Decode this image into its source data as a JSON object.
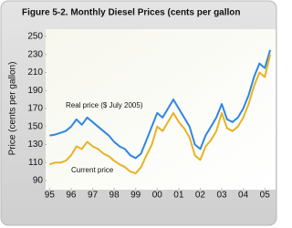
{
  "chart_data": {
    "type": "line",
    "title": "Figure 5-2.  Monthly Diesel Prices (cents per gallon",
    "y_label": "Price (cents per gallon)",
    "annotations": [
      "Real price ($ July 2005)",
      "Current price"
    ],
    "x": [
      1995,
      1995.25,
      1995.5,
      1995.75,
      1996,
      1996.25,
      1996.5,
      1996.75,
      1997,
      1997.25,
      1997.5,
      1997.75,
      1998,
      1998.25,
      1998.5,
      1998.75,
      1999,
      1999.25,
      1999.5,
      1999.75,
      2000,
      2000.25,
      2000.5,
      2000.75,
      2001,
      2001.25,
      2001.5,
      2001.75,
      2002,
      2002.25,
      2002.5,
      2002.75,
      2003,
      2003.25,
      2003.5,
      2003.75,
      2004,
      2004.25,
      2004.5,
      2004.75,
      2005,
      2005.25
    ],
    "series": [
      {
        "name": "Real price",
        "color": "#2f86e0",
        "values": [
          140,
          141,
          143,
          145,
          150,
          158,
          152,
          160,
          155,
          150,
          145,
          140,
          133,
          128,
          125,
          118,
          115,
          120,
          135,
          150,
          165,
          160,
          170,
          180,
          170,
          160,
          150,
          130,
          125,
          140,
          150,
          160,
          175,
          158,
          155,
          160,
          170,
          185,
          205,
          220,
          215,
          235
        ]
      },
      {
        "name": "Current price",
        "color": "#e6b325",
        "values": [
          108,
          110,
          110,
          112,
          118,
          128,
          125,
          133,
          128,
          125,
          120,
          117,
          112,
          108,
          105,
          100,
          98,
          105,
          118,
          130,
          150,
          145,
          155,
          165,
          155,
          148,
          138,
          118,
          113,
          128,
          135,
          145,
          165,
          148,
          145,
          150,
          160,
          175,
          195,
          210,
          205,
          230
        ]
      }
    ],
    "xlim": [
      1994.9,
      2005.5
    ],
    "xticks": [
      {
        "value": 1995,
        "label": "95"
      },
      {
        "value": 1996,
        "label": "96"
      },
      {
        "value": 1997,
        "label": "97"
      },
      {
        "value": 1998,
        "label": "98"
      },
      {
        "value": 1999,
        "label": "99"
      },
      {
        "value": 2000,
        "label": "00"
      },
      {
        "value": 2001,
        "label": "01"
      },
      {
        "value": 2002,
        "label": "02"
      },
      {
        "value": 2003,
        "label": "03"
      },
      {
        "value": 2004,
        "label": "04"
      },
      {
        "value": 2005,
        "label": "05"
      }
    ],
    "ylim": [
      90,
      250
    ],
    "yticks": [
      90,
      110,
      130,
      150,
      170,
      190,
      210,
      230,
      250
    ],
    "grid": false
  }
}
